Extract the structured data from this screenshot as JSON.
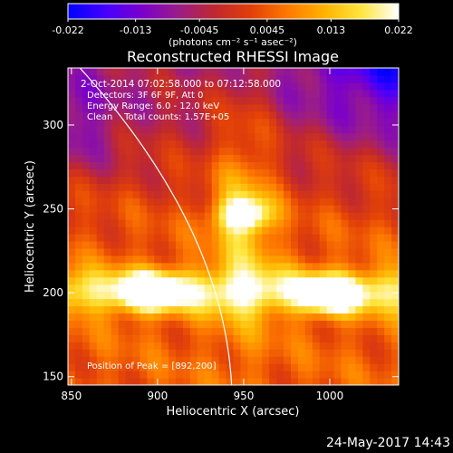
{
  "colorbar": {
    "ticks": [
      "-0.022",
      "-0.013",
      "-0.0045",
      "0.0045",
      "0.013",
      "0.022"
    ],
    "tick_values": [
      -0.022,
      -0.013,
      -0.0045,
      0.0045,
      0.013,
      0.022
    ],
    "min": -0.022,
    "max": 0.022,
    "units": "(photons cm⁻² s⁻¹ asec⁻²)",
    "colors": [
      "#0000ff",
      "#4400ff",
      "#7a00cc",
      "#9a1d88",
      "#c0282f",
      "#e24008",
      "#ff7a00",
      "#ffb400",
      "#ffe640",
      "#ffffff"
    ]
  },
  "chart_data": {
    "type": "heatmap",
    "title": "Reconstructed RHESSI Image",
    "xlabel": "Heliocentric X (arcsec)",
    "ylabel": "Heliocentric Y (arcsec)",
    "xlim": [
      848,
      1040
    ],
    "ylim": [
      145,
      334
    ],
    "xticks": [
      850,
      900,
      950,
      1000
    ],
    "yticks": [
      150,
      200,
      250,
      300
    ],
    "xtick_labels": [
      "850",
      "900",
      "950",
      "1000"
    ],
    "ytick_labels": [
      "150",
      "200",
      "250",
      "300"
    ],
    "peak": {
      "x": 892,
      "y": 200
    },
    "sources": [
      {
        "x": 896,
        "y": 201,
        "intensity": 0.022
      },
      {
        "x": 1000,
        "y": 199,
        "intensity": 0.02
      },
      {
        "x": 950,
        "y": 247,
        "intensity": 0.018
      }
    ],
    "annotations": [
      "2-Oct-2014 07:02:58.000 to 07:12:58.000",
      "Detectors: 3F 6F 9F, Att 0",
      "Energy Range: 6.0 - 12.0 keV",
      "Clean    Total counts: 1.57E+05",
      "Position of Peak = [892,200]"
    ],
    "limb_color": "#ffffff"
  },
  "footer": {
    "date": "24-May-2017 14:43"
  }
}
